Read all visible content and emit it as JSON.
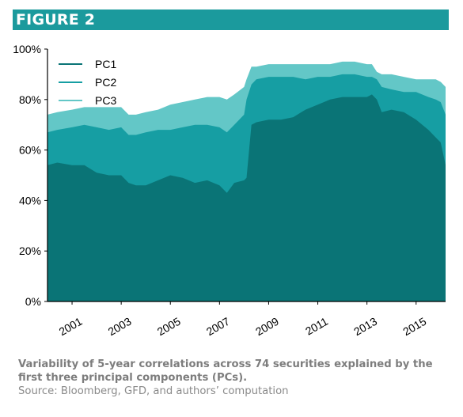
{
  "figure_label": "FIGURE 2",
  "caption": "Variability of 5-year correlations across 74 securities explained by the first three principal components (PCs).",
  "source": "Source: Bloomberg, GFD, and authors’ computation",
  "colors": {
    "banner": "#1b9a9d",
    "PC1": "#0a7476",
    "PC2": "#169ea3",
    "PC3": "#63c7c7",
    "axis": "#000000"
  },
  "chart_data": {
    "type": "area",
    "stacking": "cumulative",
    "title": "",
    "xlabel": "",
    "ylabel": "",
    "xlim": [
      2000.0,
      2016.2
    ],
    "ylim": [
      0,
      100
    ],
    "y_unit": "%",
    "y_ticks": [
      0,
      20,
      40,
      60,
      80,
      100
    ],
    "y_tick_labels": [
      "0%",
      "20%",
      "40%",
      "60%",
      "80%",
      "100%"
    ],
    "x_ticks": [
      2001,
      2003,
      2005,
      2007,
      2009,
      2011,
      2013,
      2015
    ],
    "x_tick_labels": [
      "2001",
      "2003",
      "2005",
      "2007",
      "2009",
      "2011",
      "2013",
      "2015"
    ],
    "x_tick_label_rotation_deg": -30,
    "legend": {
      "placement": "top-left",
      "entries": [
        "PC1",
        "PC2",
        "PC3"
      ]
    },
    "grid": false,
    "series": [
      {
        "name": "PC1",
        "x": [
          2000.0,
          2000.4,
          2001.0,
          2001.5,
          2002.0,
          2002.5,
          2003.0,
          2003.3,
          2003.6,
          2004.0,
          2004.5,
          2005.0,
          2005.5,
          2006.0,
          2006.5,
          2007.0,
          2007.3,
          2007.6,
          2008.0,
          2008.1,
          2008.3,
          2008.5,
          2009.0,
          2009.5,
          2010.0,
          2010.5,
          2011.0,
          2011.5,
          2012.0,
          2012.5,
          2013.0,
          2013.2,
          2013.4,
          2013.6,
          2014.0,
          2014.5,
          2015.0,
          2015.5,
          2015.8,
          2016.0,
          2016.2
        ],
        "values": [
          54,
          55,
          54,
          54,
          51,
          50,
          50,
          47,
          46,
          46,
          48,
          50,
          49,
          47,
          48,
          46,
          43,
          47,
          48,
          49,
          70,
          71,
          72,
          72,
          73,
          76,
          78,
          80,
          81,
          81,
          81,
          82,
          80,
          75,
          76,
          75,
          72,
          68,
          65,
          63,
          54
        ]
      },
      {
        "name": "PC2",
        "x": [
          2000.0,
          2000.4,
          2001.0,
          2001.5,
          2002.0,
          2002.5,
          2003.0,
          2003.3,
          2003.6,
          2004.0,
          2004.5,
          2005.0,
          2005.5,
          2006.0,
          2006.5,
          2007.0,
          2007.3,
          2007.6,
          2008.0,
          2008.1,
          2008.3,
          2008.5,
          2009.0,
          2009.5,
          2010.0,
          2010.5,
          2011.0,
          2011.5,
          2012.0,
          2012.5,
          2013.0,
          2013.2,
          2013.4,
          2013.6,
          2014.0,
          2014.5,
          2015.0,
          2015.5,
          2015.8,
          2016.0,
          2016.2
        ],
        "values": [
          67,
          68,
          69,
          70,
          69,
          68,
          69,
          66,
          66,
          67,
          68,
          68,
          69,
          70,
          70,
          69,
          67,
          70,
          74,
          80,
          86,
          88,
          89,
          89,
          89,
          88,
          89,
          89,
          90,
          90,
          89,
          89,
          88,
          85,
          84,
          83,
          83,
          81,
          80,
          79,
          74
        ]
      },
      {
        "name": "PC3",
        "x": [
          2000.0,
          2000.4,
          2001.0,
          2001.5,
          2002.0,
          2002.5,
          2003.0,
          2003.3,
          2003.6,
          2004.0,
          2004.5,
          2005.0,
          2005.5,
          2006.0,
          2006.5,
          2007.0,
          2007.3,
          2007.6,
          2008.0,
          2008.1,
          2008.3,
          2008.5,
          2009.0,
          2009.5,
          2010.0,
          2010.5,
          2011.0,
          2011.5,
          2012.0,
          2012.5,
          2013.0,
          2013.2,
          2013.4,
          2013.6,
          2014.0,
          2014.5,
          2015.0,
          2015.5,
          2015.8,
          2016.0,
          2016.2
        ],
        "values": [
          74,
          75,
          76,
          77,
          77,
          77,
          77,
          74,
          74,
          75,
          76,
          78,
          79,
          80,
          81,
          81,
          80,
          82,
          85,
          88,
          93,
          93,
          94,
          94,
          94,
          94,
          94,
          94,
          95,
          95,
          94,
          94,
          91,
          90,
          90,
          89,
          88,
          88,
          88,
          87,
          85
        ]
      }
    ]
  }
}
